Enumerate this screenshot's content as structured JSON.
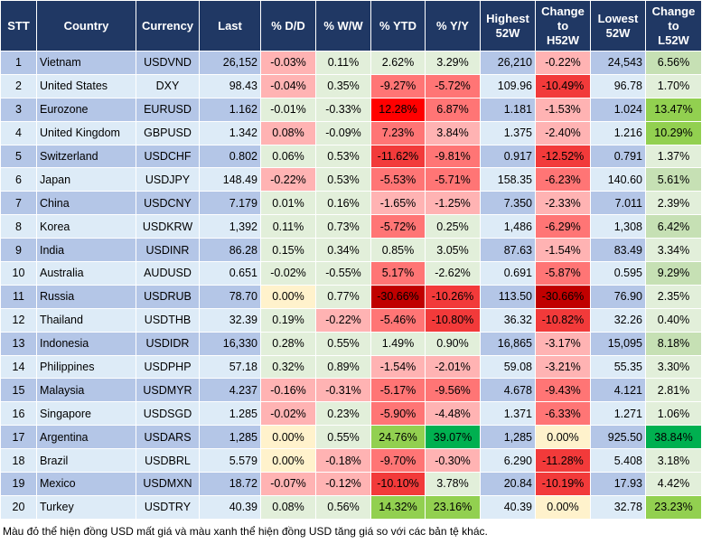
{
  "palette": {
    "g1": "#E2EFDA",
    "g2": "#C6E0B4",
    "g3": "#92D050",
    "g4": "#00B050",
    "y": "#FFF2CC",
    "r1": "#FFB3B3",
    "r2": "#FF7575",
    "r3": "#F23A3A",
    "r4": "#FF0000",
    "r5": "#C00000",
    "header": "#203864",
    "row_odd": "#B4C6E7",
    "row_even": "#DDEBF7"
  },
  "headers": [
    "STT",
    "Country",
    "Currency",
    "Last",
    "% D/D",
    "% W/W",
    "% YTD",
    "% Y/Y",
    "Highest 52W",
    "Change to H52W",
    "Lowest 52W",
    "Change to L52W"
  ],
  "rows": [
    {
      "stt": "1",
      "country": "Vietnam",
      "currency": "USDVND",
      "last": "26,152",
      "dd": [
        "-0.03%",
        "r1"
      ],
      "ww": [
        "0.11%",
        "g1"
      ],
      "ytd": [
        "2.62%",
        "g1"
      ],
      "yy": [
        "3.29%",
        "g1"
      ],
      "high": "26,210",
      "ch": [
        "-0.22%",
        "r1"
      ],
      "low": "24,543",
      "cl": [
        "6.56%",
        "g2"
      ]
    },
    {
      "stt": "2",
      "country": "United States",
      "currency": "DXY",
      "last": "98.43",
      "dd": [
        "-0.04%",
        "r1"
      ],
      "ww": [
        "0.35%",
        "g1"
      ],
      "ytd": [
        "-9.27%",
        "r2"
      ],
      "yy": [
        "-5.72%",
        "r2"
      ],
      "high": "109.96",
      "ch": [
        "-10.49%",
        "r3"
      ],
      "low": "96.78",
      "cl": [
        "1.70%",
        "g1"
      ]
    },
    {
      "stt": "3",
      "country": "Eurozone",
      "currency": "EURUSD",
      "last": "1.162",
      "dd": [
        "-0.01%",
        "g1"
      ],
      "ww": [
        "-0.33%",
        "g1"
      ],
      "ytd": [
        "12.28%",
        "r4"
      ],
      "yy": [
        "6.87%",
        "r2"
      ],
      "high": "1.181",
      "ch": [
        "-1.53%",
        "r1"
      ],
      "low": "1.024",
      "cl": [
        "13.47%",
        "g3"
      ]
    },
    {
      "stt": "4",
      "country": "United Kingdom",
      "currency": "GBPUSD",
      "last": "1.342",
      "dd": [
        "0.08%",
        "r1"
      ],
      "ww": [
        "-0.09%",
        "g1"
      ],
      "ytd": [
        "7.23%",
        "r2"
      ],
      "yy": [
        "3.84%",
        "r1"
      ],
      "high": "1.375",
      "ch": [
        "-2.40%",
        "r1"
      ],
      "low": "1.216",
      "cl": [
        "10.29%",
        "g3"
      ]
    },
    {
      "stt": "5",
      "country": "Switzerland",
      "currency": "USDCHF",
      "last": "0.802",
      "dd": [
        "0.06%",
        "g1"
      ],
      "ww": [
        "0.53%",
        "g1"
      ],
      "ytd": [
        "-11.62%",
        "r3"
      ],
      "yy": [
        "-9.81%",
        "r2"
      ],
      "high": "0.917",
      "ch": [
        "-12.52%",
        "r3"
      ],
      "low": "0.791",
      "cl": [
        "1.37%",
        "g1"
      ]
    },
    {
      "stt": "6",
      "country": "Japan",
      "currency": "USDJPY",
      "last": "148.49",
      "dd": [
        "-0.22%",
        "r1"
      ],
      "ww": [
        "0.53%",
        "g1"
      ],
      "ytd": [
        "-5.53%",
        "r2"
      ],
      "yy": [
        "-5.71%",
        "r2"
      ],
      "high": "158.35",
      "ch": [
        "-6.23%",
        "r2"
      ],
      "low": "140.60",
      "cl": [
        "5.61%",
        "g2"
      ]
    },
    {
      "stt": "7",
      "country": "China",
      "currency": "USDCNY",
      "last": "7.179",
      "dd": [
        "0.01%",
        "g1"
      ],
      "ww": [
        "0.16%",
        "g1"
      ],
      "ytd": [
        "-1.65%",
        "r1"
      ],
      "yy": [
        "-1.25%",
        "r1"
      ],
      "high": "7.350",
      "ch": [
        "-2.33%",
        "r1"
      ],
      "low": "7.011",
      "cl": [
        "2.39%",
        "g1"
      ]
    },
    {
      "stt": "8",
      "country": "Korea",
      "currency": "USDKRW",
      "last": "1,392",
      "dd": [
        "0.11%",
        "g1"
      ],
      "ww": [
        "0.73%",
        "g1"
      ],
      "ytd": [
        "-5.72%",
        "r2"
      ],
      "yy": [
        "0.25%",
        "g1"
      ],
      "high": "1,486",
      "ch": [
        "-6.29%",
        "r2"
      ],
      "low": "1,308",
      "cl": [
        "6.42%",
        "g2"
      ]
    },
    {
      "stt": "9",
      "country": "India",
      "currency": "USDINR",
      "last": "86.28",
      "dd": [
        "0.15%",
        "g1"
      ],
      "ww": [
        "0.34%",
        "g1"
      ],
      "ytd": [
        "0.85%",
        "g1"
      ],
      "yy": [
        "3.05%",
        "g1"
      ],
      "high": "87.63",
      "ch": [
        "-1.54%",
        "r1"
      ],
      "low": "83.49",
      "cl": [
        "3.34%",
        "g1"
      ]
    },
    {
      "stt": "10",
      "country": "Australia",
      "currency": "AUDUSD",
      "last": "0.651",
      "dd": [
        "-0.02%",
        "g1"
      ],
      "ww": [
        "-0.55%",
        "g1"
      ],
      "ytd": [
        "5.17%",
        "r2"
      ],
      "yy": [
        "-2.62%",
        "g1"
      ],
      "high": "0.691",
      "ch": [
        "-5.87%",
        "r2"
      ],
      "low": "0.595",
      "cl": [
        "9.29%",
        "g2"
      ]
    },
    {
      "stt": "11",
      "country": "Russia",
      "currency": "USDRUB",
      "last": "78.70",
      "dd": [
        "0.00%",
        "y"
      ],
      "ww": [
        "0.77%",
        "g1"
      ],
      "ytd": [
        "-30.66%",
        "r5"
      ],
      "yy": [
        "-10.26%",
        "r3"
      ],
      "high": "113.50",
      "ch": [
        "-30.66%",
        "r5"
      ],
      "low": "76.90",
      "cl": [
        "2.35%",
        "g1"
      ]
    },
    {
      "stt": "12",
      "country": "Thailand",
      "currency": "USDTHB",
      "last": "32.39",
      "dd": [
        "0.19%",
        "g1"
      ],
      "ww": [
        "-0.22%",
        "r1"
      ],
      "ytd": [
        "-5.46%",
        "r2"
      ],
      "yy": [
        "-10.80%",
        "r3"
      ],
      "high": "36.32",
      "ch": [
        "-10.82%",
        "r3"
      ],
      "low": "32.26",
      "cl": [
        "0.40%",
        "g1"
      ]
    },
    {
      "stt": "13",
      "country": "Indonesia",
      "currency": "USDIDR",
      "last": "16,330",
      "dd": [
        "0.28%",
        "g1"
      ],
      "ww": [
        "0.55%",
        "g1"
      ],
      "ytd": [
        "1.49%",
        "g1"
      ],
      "yy": [
        "0.90%",
        "g1"
      ],
      "high": "16,865",
      "ch": [
        "-3.17%",
        "r1"
      ],
      "low": "15,095",
      "cl": [
        "8.18%",
        "g2"
      ]
    },
    {
      "stt": "14",
      "country": "Philippines",
      "currency": "USDPHP",
      "last": "57.18",
      "dd": [
        "0.32%",
        "g1"
      ],
      "ww": [
        "0.89%",
        "g1"
      ],
      "ytd": [
        "-1.54%",
        "r1"
      ],
      "yy": [
        "-2.01%",
        "r1"
      ],
      "high": "59.08",
      "ch": [
        "-3.21%",
        "r1"
      ],
      "low": "55.35",
      "cl": [
        "3.30%",
        "g1"
      ]
    },
    {
      "stt": "15",
      "country": "Malaysia",
      "currency": "USDMYR",
      "last": "4.237",
      "dd": [
        "-0.16%",
        "r1"
      ],
      "ww": [
        "-0.31%",
        "r1"
      ],
      "ytd": [
        "-5.17%",
        "r2"
      ],
      "yy": [
        "-9.56%",
        "r2"
      ],
      "high": "4.678",
      "ch": [
        "-9.43%",
        "r2"
      ],
      "low": "4.121",
      "cl": [
        "2.81%",
        "g1"
      ]
    },
    {
      "stt": "16",
      "country": "Singapore",
      "currency": "USDSGD",
      "last": "1.285",
      "dd": [
        "-0.02%",
        "r1"
      ],
      "ww": [
        "0.23%",
        "g1"
      ],
      "ytd": [
        "-5.90%",
        "r2"
      ],
      "yy": [
        "-4.48%",
        "r1"
      ],
      "high": "1.371",
      "ch": [
        "-6.33%",
        "r2"
      ],
      "low": "1.271",
      "cl": [
        "1.06%",
        "g1"
      ]
    },
    {
      "stt": "17",
      "country": "Argentina",
      "currency": "USDARS",
      "last": "1,285",
      "dd": [
        "0.00%",
        "y"
      ],
      "ww": [
        "0.55%",
        "g1"
      ],
      "ytd": [
        "24.76%",
        "g3"
      ],
      "yy": [
        "39.07%",
        "g4"
      ],
      "high": "1,285",
      "ch": [
        "0.00%",
        "y"
      ],
      "low": "925.50",
      "cl": [
        "38.84%",
        "g4"
      ]
    },
    {
      "stt": "18",
      "country": "Brazil",
      "currency": "USDBRL",
      "last": "5.579",
      "dd": [
        "0.00%",
        "y"
      ],
      "ww": [
        "-0.18%",
        "r1"
      ],
      "ytd": [
        "-9.70%",
        "r2"
      ],
      "yy": [
        "-0.30%",
        "r1"
      ],
      "high": "6.290",
      "ch": [
        "-11.28%",
        "r3"
      ],
      "low": "5.408",
      "cl": [
        "3.18%",
        "g1"
      ]
    },
    {
      "stt": "19",
      "country": "Mexico",
      "currency": "USDMXN",
      "last": "18.72",
      "dd": [
        "-0.07%",
        "r1"
      ],
      "ww": [
        "-0.12%",
        "r1"
      ],
      "ytd": [
        "-10.10%",
        "r3"
      ],
      "yy": [
        "3.78%",
        "g1"
      ],
      "high": "20.84",
      "ch": [
        "-10.19%",
        "r3"
      ],
      "low": "17.93",
      "cl": [
        "4.42%",
        "g1"
      ]
    },
    {
      "stt": "20",
      "country": "Turkey",
      "currency": "USDTRY",
      "last": "40.39",
      "dd": [
        "0.08%",
        "g1"
      ],
      "ww": [
        "0.56%",
        "g1"
      ],
      "ytd": [
        "14.32%",
        "g3"
      ],
      "yy": [
        "23.16%",
        "g3"
      ],
      "high": "40.39",
      "ch": [
        "0.00%",
        "y"
      ],
      "low": "32.78",
      "cl": [
        "23.23%",
        "g3"
      ]
    }
  ],
  "footnote": "Màu đỏ thể hiện đồng USD mất giá và màu xanh thể hiện đồng USD tăng giá so với các bản tệ khác."
}
